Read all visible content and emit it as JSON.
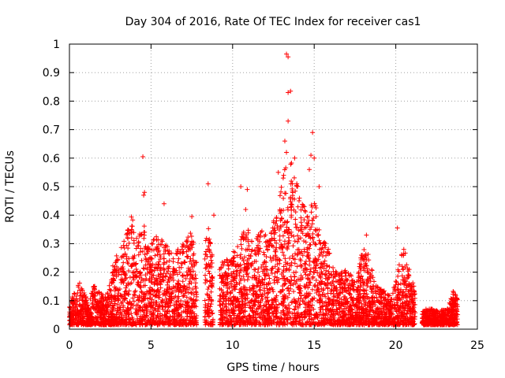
{
  "chart_data": {
    "type": "scatter",
    "title": "Day 304 of 2016, Rate Of TEC Index for receiver cas1",
    "xlabel": "GPS time / hours",
    "ylabel": "ROTI / TECUs",
    "xlim": [
      0,
      25
    ],
    "ylim": [
      0,
      1
    ],
    "x_ticks": [
      "0",
      "5",
      "10",
      "15",
      "20",
      "25"
    ],
    "y_ticks": [
      "0",
      "0.1",
      "0.2",
      "0.3",
      "0.4",
      "0.5",
      "0.6",
      "0.7",
      "0.8",
      "0.9",
      "1"
    ],
    "grid": true,
    "marker": "plus",
    "color": "#ff0000",
    "series": [
      {
        "name": "ROTI",
        "segments": [
          {
            "x_start": 0.0,
            "x_end": 1.2,
            "envelope": [
              [
                0.0,
                0.07
              ],
              [
                0.3,
                0.12
              ],
              [
                0.6,
                0.15
              ],
              [
                1.0,
                0.1
              ],
              [
                1.2,
                0.06
              ]
            ]
          },
          {
            "x_start": 1.2,
            "x_end": 2.6,
            "envelope": [
              [
                1.2,
                0.08
              ],
              [
                1.5,
                0.14
              ],
              [
                1.8,
                0.12
              ],
              [
                2.2,
                0.1
              ],
              [
                2.6,
                0.18
              ]
            ]
          },
          {
            "x_start": 2.6,
            "x_end": 5.0,
            "envelope": [
              [
                2.6,
                0.2
              ],
              [
                3.0,
                0.26
              ],
              [
                3.4,
                0.3
              ],
              [
                3.8,
                0.4
              ],
              [
                4.2,
                0.32
              ],
              [
                4.6,
                0.35
              ],
              [
                5.0,
                0.28
              ]
            ]
          },
          {
            "x_start": 5.0,
            "x_end": 7.8,
            "envelope": [
              [
                5.0,
                0.3
              ],
              [
                5.5,
                0.33
              ],
              [
                6.0,
                0.28
              ],
              [
                6.5,
                0.25
              ],
              [
                7.0,
                0.3
              ],
              [
                7.5,
                0.33
              ],
              [
                7.8,
                0.22
              ]
            ]
          },
          {
            "x_start": 8.3,
            "x_end": 8.8,
            "envelope": [
              [
                8.3,
                0.28
              ],
              [
                8.5,
                0.35
              ],
              [
                8.8,
                0.22
              ]
            ]
          },
          {
            "x_start": 9.2,
            "x_end": 12.3,
            "envelope": [
              [
                9.2,
                0.22
              ],
              [
                9.8,
                0.25
              ],
              [
                10.3,
                0.28
              ],
              [
                10.8,
                0.35
              ],
              [
                11.3,
                0.3
              ],
              [
                11.8,
                0.33
              ],
              [
                12.3,
                0.3
              ]
            ]
          },
          {
            "x_start": 12.3,
            "x_end": 16.0,
            "envelope": [
              [
                12.3,
                0.32
              ],
              [
                12.8,
                0.45
              ],
              [
                13.2,
                0.55
              ],
              [
                13.6,
                0.58
              ],
              [
                14.0,
                0.5
              ],
              [
                14.5,
                0.4
              ],
              [
                15.0,
                0.45
              ],
              [
                15.5,
                0.3
              ],
              [
                16.0,
                0.28
              ]
            ]
          },
          {
            "x_start": 16.0,
            "x_end": 19.8,
            "envelope": [
              [
                16.0,
                0.22
              ],
              [
                16.5,
                0.18
              ],
              [
                17.0,
                0.2
              ],
              [
                17.5,
                0.15
              ],
              [
                18.0,
                0.28
              ],
              [
                18.3,
                0.25
              ],
              [
                18.8,
                0.15
              ],
              [
                19.3,
                0.12
              ],
              [
                19.8,
                0.1
              ]
            ]
          },
          {
            "x_start": 19.8,
            "x_end": 21.2,
            "envelope": [
              [
                19.8,
                0.12
              ],
              [
                20.2,
                0.22
              ],
              [
                20.5,
                0.28
              ],
              [
                20.8,
                0.2
              ],
              [
                21.2,
                0.12
              ]
            ]
          },
          {
            "x_start": 21.6,
            "x_end": 23.8,
            "envelope": [
              [
                21.6,
                0.05
              ],
              [
                22.0,
                0.06
              ],
              [
                22.6,
                0.05
              ],
              [
                23.2,
                0.06
              ],
              [
                23.5,
                0.12
              ],
              [
                23.8,
                0.1
              ]
            ]
          }
        ],
        "outliers": [
          {
            "x": 4.5,
            "y": 0.605
          },
          {
            "x": 4.6,
            "y": 0.48
          },
          {
            "x": 4.55,
            "y": 0.47
          },
          {
            "x": 5.8,
            "y": 0.44
          },
          {
            "x": 7.5,
            "y": 0.395
          },
          {
            "x": 8.5,
            "y": 0.51
          },
          {
            "x": 8.85,
            "y": 0.4
          },
          {
            "x": 10.5,
            "y": 0.5
          },
          {
            "x": 10.9,
            "y": 0.49
          },
          {
            "x": 10.8,
            "y": 0.42
          },
          {
            "x": 13.3,
            "y": 0.965
          },
          {
            "x": 13.4,
            "y": 0.955
          },
          {
            "x": 13.4,
            "y": 0.83
          },
          {
            "x": 13.55,
            "y": 0.835
          },
          {
            "x": 13.4,
            "y": 0.73
          },
          {
            "x": 13.2,
            "y": 0.66
          },
          {
            "x": 13.3,
            "y": 0.62
          },
          {
            "x": 13.8,
            "y": 0.6
          },
          {
            "x": 14.9,
            "y": 0.69
          },
          {
            "x": 14.8,
            "y": 0.61
          },
          {
            "x": 15.0,
            "y": 0.6
          },
          {
            "x": 14.7,
            "y": 0.56
          },
          {
            "x": 15.3,
            "y": 0.5
          },
          {
            "x": 12.8,
            "y": 0.55
          },
          {
            "x": 13.1,
            "y": 0.53
          },
          {
            "x": 18.2,
            "y": 0.33
          },
          {
            "x": 20.1,
            "y": 0.355
          }
        ]
      }
    ]
  }
}
